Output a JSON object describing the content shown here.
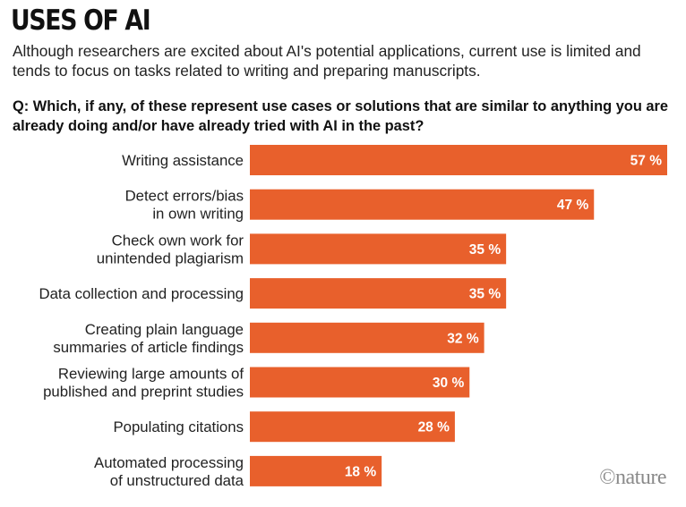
{
  "header": {
    "title": "USES OF AI",
    "subtitle": "Although researchers are excited about AI's potential applications, current use is limited and tends to focus on tasks related to writing and preparing manuscripts.",
    "question": "Q: Which, if any, of these represent use cases or solutions that are similar to anything you are already doing and/or have already tried with AI in the past?"
  },
  "footer": {
    "credit": "©nature"
  },
  "colors": {
    "bar": "#e8602c",
    "value_text": "#ffffff",
    "label_text": "#222222"
  },
  "chart_data": {
    "type": "bar",
    "orientation": "horizontal",
    "title": "USES OF AI",
    "xlabel": "",
    "ylabel": "",
    "value_suffix": " %",
    "xlim": [
      0,
      57
    ],
    "grid": false,
    "categories": [
      [
        "Writing assistance"
      ],
      [
        "Detect errors/bias",
        "in own writing"
      ],
      [
        "Check own work for",
        "unintended plagiarism"
      ],
      [
        "Data collection and processing"
      ],
      [
        "Creating plain language",
        "summaries of article findings"
      ],
      [
        "Reviewing large amounts of",
        "published and preprint studies"
      ],
      [
        "Populating citations"
      ],
      [
        "Automated processing",
        "of unstructured data"
      ]
    ],
    "values": [
      57,
      47,
      35,
      35,
      32,
      30,
      28,
      18
    ]
  }
}
